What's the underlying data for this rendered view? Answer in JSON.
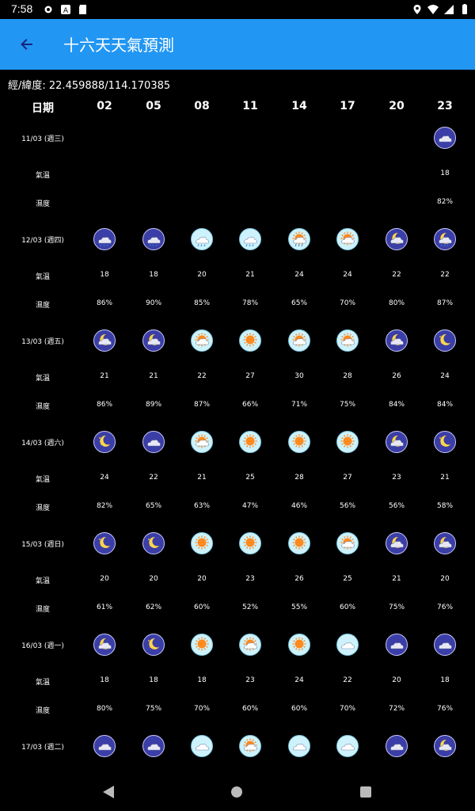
{
  "status": {
    "time": "7:58"
  },
  "title": "十六天天氣預測",
  "coords": "經/緯度: 22.459888/114.170385",
  "header": {
    "date_label": "日期",
    "hours": [
      "02",
      "05",
      "08",
      "11",
      "14",
      "17",
      "20",
      "23"
    ]
  },
  "labels": {
    "temp": "氣溫",
    "humidity": "濕度"
  },
  "days": [
    {
      "date": "11/03 (週三)",
      "icons": [
        "",
        "",
        "",
        "",
        "",
        "",
        "",
        "night-cloud"
      ],
      "temps": [
        "",
        "",
        "",
        "",
        "",
        "",
        "",
        "18"
      ],
      "hums": [
        "",
        "",
        "",
        "",
        "",
        "",
        "",
        "82%"
      ]
    },
    {
      "date": "12/03 (週四)",
      "icons": [
        "night-cloud-rain",
        "night-cloud-rain",
        "day-cloud-rain",
        "day-cloud-rain",
        "day-sun-cloud-rain",
        "day-sun-cloud",
        "night-moon-cloud",
        "night-moon-cloud-rain"
      ],
      "temps": [
        "18",
        "18",
        "20",
        "21",
        "24",
        "24",
        "22",
        "22"
      ],
      "hums": [
        "86%",
        "90%",
        "85%",
        "78%",
        "65%",
        "70%",
        "80%",
        "87%"
      ]
    },
    {
      "date": "13/03 (週五)",
      "icons": [
        "night-moon-cloud",
        "night-moon-cloud",
        "day-sun-cloud",
        "day-sun",
        "day-sun-cloud",
        "day-sun-cloud",
        "night-moon-cloud",
        "night-moon"
      ],
      "temps": [
        "21",
        "21",
        "22",
        "27",
        "30",
        "28",
        "26",
        "24"
      ],
      "hums": [
        "86%",
        "89%",
        "87%",
        "66%",
        "71%",
        "75%",
        "84%",
        "84%"
      ]
    },
    {
      "date": "14/03 (週六)",
      "icons": [
        "night-moon",
        "night-cloud",
        "day-sun-cloud",
        "day-sun",
        "day-sun",
        "day-sun",
        "night-moon-cloud",
        "night-moon"
      ],
      "temps": [
        "24",
        "22",
        "21",
        "25",
        "28",
        "27",
        "23",
        "21"
      ],
      "hums": [
        "82%",
        "65%",
        "63%",
        "47%",
        "46%",
        "56%",
        "56%",
        "58%"
      ]
    },
    {
      "date": "15/03 (週日)",
      "icons": [
        "night-moon",
        "night-moon",
        "day-sun",
        "day-sun",
        "day-sun",
        "day-sun-cloud",
        "night-moon-cloud",
        "night-moon-cloud"
      ],
      "temps": [
        "20",
        "20",
        "20",
        "23",
        "26",
        "25",
        "21",
        "20"
      ],
      "hums": [
        "61%",
        "62%",
        "60%",
        "52%",
        "55%",
        "60%",
        "75%",
        "76%"
      ]
    },
    {
      "date": "16/03 (週一)",
      "icons": [
        "night-moon-cloud",
        "night-moon",
        "day-sun",
        "day-sun-cloud",
        "day-sun",
        "day-cloud",
        "night-cloud",
        "night-cloud"
      ],
      "temps": [
        "18",
        "18",
        "18",
        "23",
        "24",
        "22",
        "20",
        "18"
      ],
      "hums": [
        "80%",
        "75%",
        "70%",
        "60%",
        "60%",
        "70%",
        "72%",
        "76%"
      ]
    },
    {
      "date": "17/03 (週二)",
      "icons": [
        "night-cloud",
        "night-cloud",
        "day-cloud",
        "day-sun-cloud",
        "day-cloud",
        "day-cloud",
        "night-cloud",
        "night-moon-cloud"
      ],
      "temps": [],
      "hums": []
    }
  ]
}
